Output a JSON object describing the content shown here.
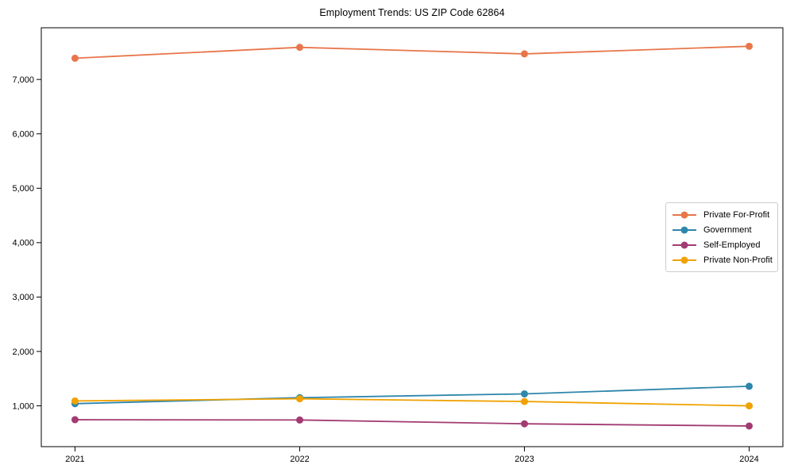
{
  "title": "Employment Trends: US ZIP Code 62864",
  "chart_data": {
    "type": "line",
    "title": "Employment Trends: US ZIP Code 62864",
    "x": [
      2021,
      2022,
      2023,
      2024
    ],
    "x_labels": [
      "2021",
      "2022",
      "2023",
      "2024"
    ],
    "series": [
      {
        "name": "Private For-Profit",
        "color": "#e8764b",
        "values": [
          7390,
          7590,
          7470,
          7610
        ]
      },
      {
        "name": "Government",
        "color": "#2e86ab",
        "values": [
          1040,
          1150,
          1220,
          1360
        ]
      },
      {
        "name": "Self-Employed",
        "color": "#a23b72",
        "values": [
          745,
          740,
          670,
          630
        ]
      },
      {
        "name": "Private Non-Profit",
        "color": "#f0a202",
        "values": [
          1090,
          1130,
          1080,
          1000
        ]
      }
    ],
    "yticks": [
      1000,
      2000,
      3000,
      4000,
      5000,
      6000,
      7000
    ],
    "ytick_labels": [
      "1,000",
      "2,000",
      "3,000",
      "4,000",
      "5,000",
      "6,000",
      "7,000"
    ],
    "ylim": [
      250,
      7950
    ],
    "xlim": [
      2020.85,
      2024.15
    ],
    "grid": false,
    "legend_position": "center-right",
    "axis_color": "#000000",
    "marker": "circle",
    "marker_radius": 4.5,
    "line_width": 1.8
  }
}
